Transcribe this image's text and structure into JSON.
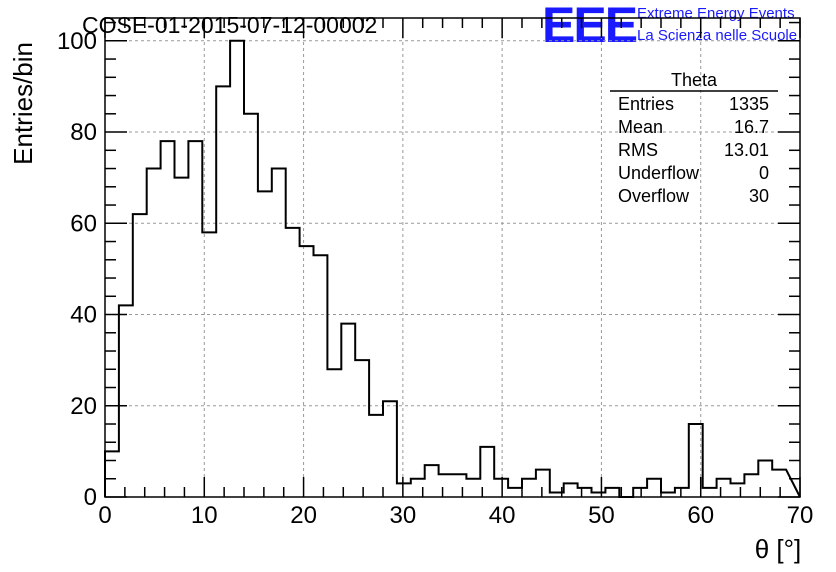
{
  "header": {
    "run_title": "COSE-01-2015-07-12-00002",
    "logo_text": "EEE",
    "logo_line1": "Extreme Energy Events",
    "logo_line2": "La Scienza nelle Scuole"
  },
  "stats": {
    "name": "Theta",
    "rows": [
      {
        "label": "Entries",
        "value": "1335"
      },
      {
        "label": "Mean",
        "value": "16.7"
      },
      {
        "label": "RMS",
        "value": "13.01"
      },
      {
        "label": "Underflow",
        "value": "0"
      },
      {
        "label": "Overflow",
        "value": "30"
      }
    ]
  },
  "colors": {
    "logo": "#1a1aff",
    "grid": "#999999",
    "line": "#000000"
  },
  "chart_data": {
    "type": "bar",
    "histogram": true,
    "xlabel": "θ [°]",
    "ylabel": "Entries/bin",
    "xlim": [
      0,
      70
    ],
    "ylim": [
      0,
      105
    ],
    "grid": true,
    "xticks": [
      0,
      10,
      20,
      30,
      40,
      50,
      60,
      70
    ],
    "yticks": [
      0,
      20,
      40,
      60,
      80,
      100
    ],
    "bin_width": 1.4,
    "values": [
      10,
      42,
      62,
      72,
      78,
      70,
      78,
      58,
      90,
      100,
      84,
      67,
      72,
      59,
      55,
      53,
      28,
      38,
      30,
      18,
      21,
      3,
      4,
      7,
      5,
      5,
      4,
      11,
      4,
      2,
      4,
      6,
      1,
      3,
      2,
      1,
      2,
      0,
      2,
      4,
      1,
      2,
      16,
      2,
      4,
      3,
      5,
      8,
      6
    ]
  }
}
